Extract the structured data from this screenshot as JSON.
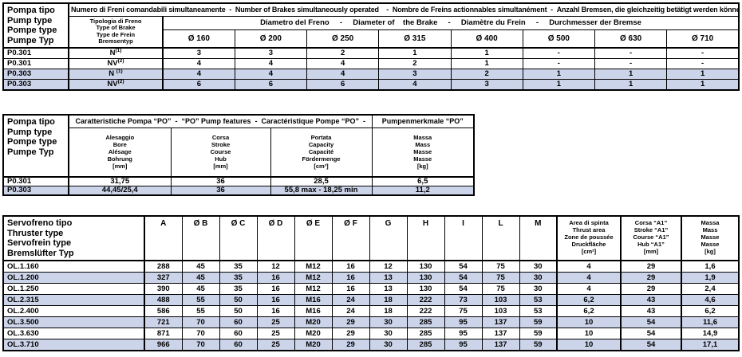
{
  "colors": {
    "row_highlight": "#ccd4ea",
    "border": "#000000",
    "text": "#000000",
    "background": "#ffffff"
  },
  "brakes_table": {
    "corner": "Pompa tipo\nPump type\nPompe type\nPumpe Typ",
    "title": "Numero di Freni comandabili simultaneamente  -  Number of Brakes simultaneously operated    -  Nombre de Freins actionnables simultanément  -  Anzahl Bremsen, die gleichzeitig betätigt werden können",
    "brake_type_header": "Tipologia di Freno\nType of Brake\nType de Frein\nBremsentyp",
    "diameter_title": "Diametro del Freno     -     Diameter of    the Brake     -     Diamètre du Frein     -     Durchmesser der Bremse",
    "diameters": [
      "Ø 160",
      "Ø 200",
      "Ø 250",
      "Ø 315",
      "Ø 400",
      "Ø 500",
      "Ø 630",
      "Ø 710"
    ],
    "rows": [
      {
        "highlight": false,
        "cells": [
          "P0.301",
          "N^(1)",
          "3",
          "3",
          "2",
          "1",
          "1",
          "-",
          "-",
          "-"
        ]
      },
      {
        "highlight": false,
        "cells": [
          "P0.301",
          "NV^(2)",
          "4",
          "4",
          "4",
          "2",
          "1",
          "-",
          "-",
          "-"
        ]
      },
      {
        "highlight": true,
        "cells": [
          "P0.303",
          "N ^(1)",
          "4",
          "4",
          "4",
          "3",
          "2",
          "1",
          "1",
          "1"
        ]
      },
      {
        "highlight": true,
        "cells": [
          "P0.303",
          "NV^(2)",
          "6",
          "6",
          "6",
          "4",
          "3",
          "1",
          "1",
          "1"
        ]
      }
    ]
  },
  "pump_table": {
    "corner": "Pompa tipo\nPump type\nPompe type\nPumpe Typ",
    "title_left": "Caratteristiche Pompa “PO”  -  “PO” Pump features  -  Caractéristique Pompe “PO”  -",
    "title_right": "Pumpenmerkmale “PO”",
    "columns": [
      "Alesaggio\nBore\nAlésage\nBohrung\n[mm]",
      "Corsa\nStroke\nCourse\nHub\n[mm]",
      "Portata\nCapacity\nCapacité\nFördermenge\n[cm³]",
      "Massa\nMass\nMasse\nMasse\n[kg]"
    ],
    "rows": [
      {
        "highlight": false,
        "cells": [
          "P0.301",
          "31,75",
          "36",
          "28,5",
          "6,5"
        ]
      },
      {
        "highlight": true,
        "cells": [
          "P0.303",
          "44,45/25,4",
          "36",
          "55,8 max - 18,25 min",
          "11,2"
        ]
      }
    ]
  },
  "thruster_table": {
    "corner": "Servofreno tipo\nThruster type\nServofrein type\nBremslüfter Typ",
    "dim_columns": [
      "A",
      "Ø B",
      "Ø C",
      "Ø D",
      "Ø E",
      "Ø F",
      "G",
      "H",
      "I",
      "L",
      "M"
    ],
    "area_header": "Area di spinta\nThrust area\nZone de poussée\nDruckfläche\n[cm²]",
    "stroke_header": "Corsa “A1”\nStroke “A1”\nCourse “A1”\nHub “A1”\n[mm]",
    "mass_header": "Massa\nMass\nMasse\nMasse\n[kg]",
    "rows": [
      {
        "highlight": false,
        "cells": [
          "OL.1.160",
          "288",
          "45",
          "35",
          "12",
          "M12",
          "16",
          "12",
          "130",
          "54",
          "75",
          "30",
          "4",
          "29",
          "1,6"
        ]
      },
      {
        "highlight": true,
        "cells": [
          "OL.1.200",
          "327",
          "45",
          "35",
          "16",
          "M12",
          "16",
          "13",
          "130",
          "54",
          "75",
          "30",
          "4",
          "29",
          "1,9"
        ]
      },
      {
        "highlight": false,
        "cells": [
          "OL.1.250",
          "390",
          "45",
          "35",
          "16",
          "M12",
          "16",
          "13",
          "130",
          "54",
          "75",
          "30",
          "4",
          "29",
          "2,4"
        ]
      },
      {
        "highlight": true,
        "cells": [
          "OL.2.315",
          "488",
          "55",
          "50",
          "16",
          "M16",
          "24",
          "18",
          "222",
          "73",
          "103",
          "53",
          "6,2",
          "43",
          "4,6"
        ]
      },
      {
        "highlight": false,
        "cells": [
          "OL.2.400",
          "586",
          "55",
          "50",
          "16",
          "M16",
          "24",
          "18",
          "222",
          "75",
          "103",
          "53",
          "6,2",
          "43",
          "6,2"
        ]
      },
      {
        "highlight": true,
        "cells": [
          "OL.3.500",
          "721",
          "70",
          "60",
          "25",
          "M20",
          "29",
          "30",
          "285",
          "95",
          "137",
          "59",
          "10",
          "54",
          "11,6"
        ]
      },
      {
        "highlight": false,
        "cells": [
          "OL.3.630",
          "871",
          "70",
          "60",
          "25",
          "M20",
          "29",
          "30",
          "285",
          "95",
          "137",
          "59",
          "10",
          "54",
          "14,9"
        ]
      },
      {
        "highlight": true,
        "cells": [
          "OL.3.710",
          "966",
          "70",
          "60",
          "25",
          "M20",
          "29",
          "30",
          "285",
          "95",
          "137",
          "59",
          "10",
          "54",
          "17,1"
        ]
      }
    ]
  }
}
